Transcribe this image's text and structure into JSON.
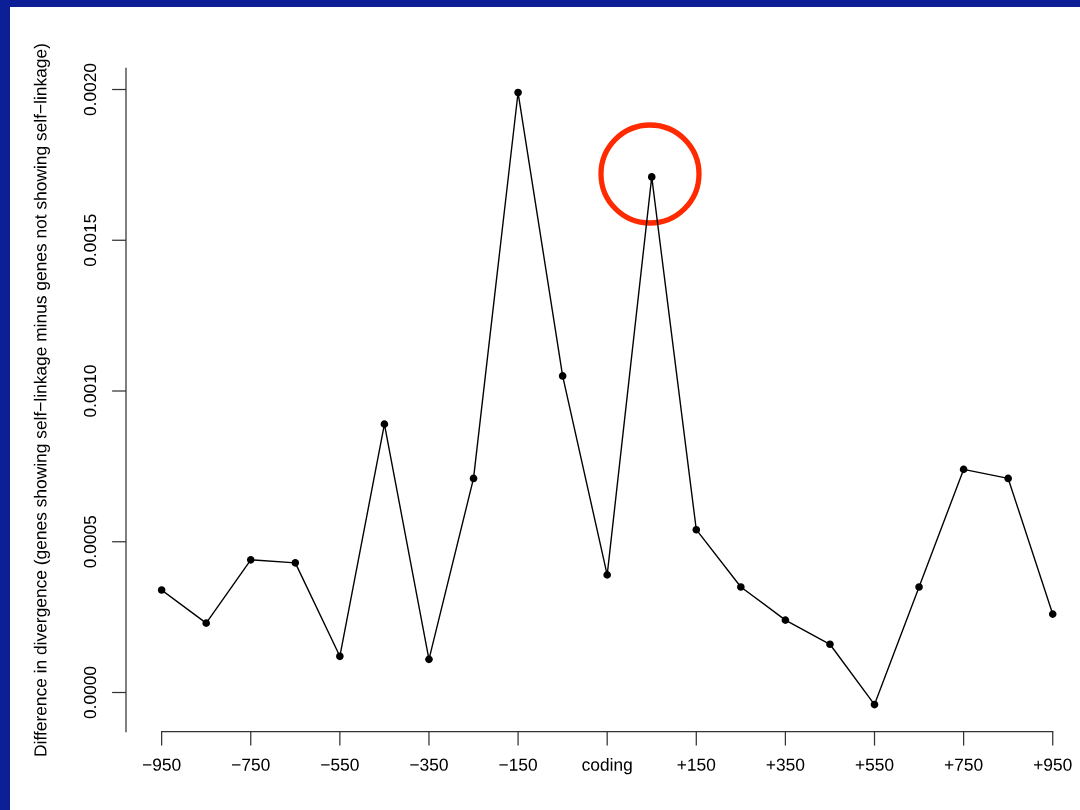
{
  "chart_data": {
    "type": "line",
    "ylabel": "Difference in divergence (genes showing self−linkage minus genes not showing self−linkage)",
    "categories": [
      "−950",
      null,
      "−750",
      null,
      "−550",
      null,
      "−350",
      null,
      "−150",
      null,
      "coding",
      null,
      "+150",
      null,
      "+350",
      null,
      "+550",
      null,
      "+750",
      null,
      "+950"
    ],
    "values": [
      0.00034,
      0.00023,
      0.00044,
      0.00043,
      0.00012,
      0.00089,
      0.00011,
      0.00071,
      0.00199,
      0.00105,
      0.00039,
      0.00171,
      0.00054,
      0.00035,
      0.00024,
      0.00016,
      -4e-05,
      0.00035,
      0.00074,
      0.00071,
      0.00026
    ],
    "color": "#000000",
    "marker": "circle",
    "line_style": "solid",
    "ylim": [
      -0.00013,
      0.00207
    ],
    "yticks": [
      {
        "value": 0,
        "label": "0.0000"
      },
      {
        "value": 0.0005,
        "label": "0.0005"
      },
      {
        "value": 0.001,
        "label": "0.0010"
      },
      {
        "value": 0.0015,
        "label": "0.0015"
      },
      {
        "value": 0.002,
        "label": "0.0020"
      }
    ]
  }
}
